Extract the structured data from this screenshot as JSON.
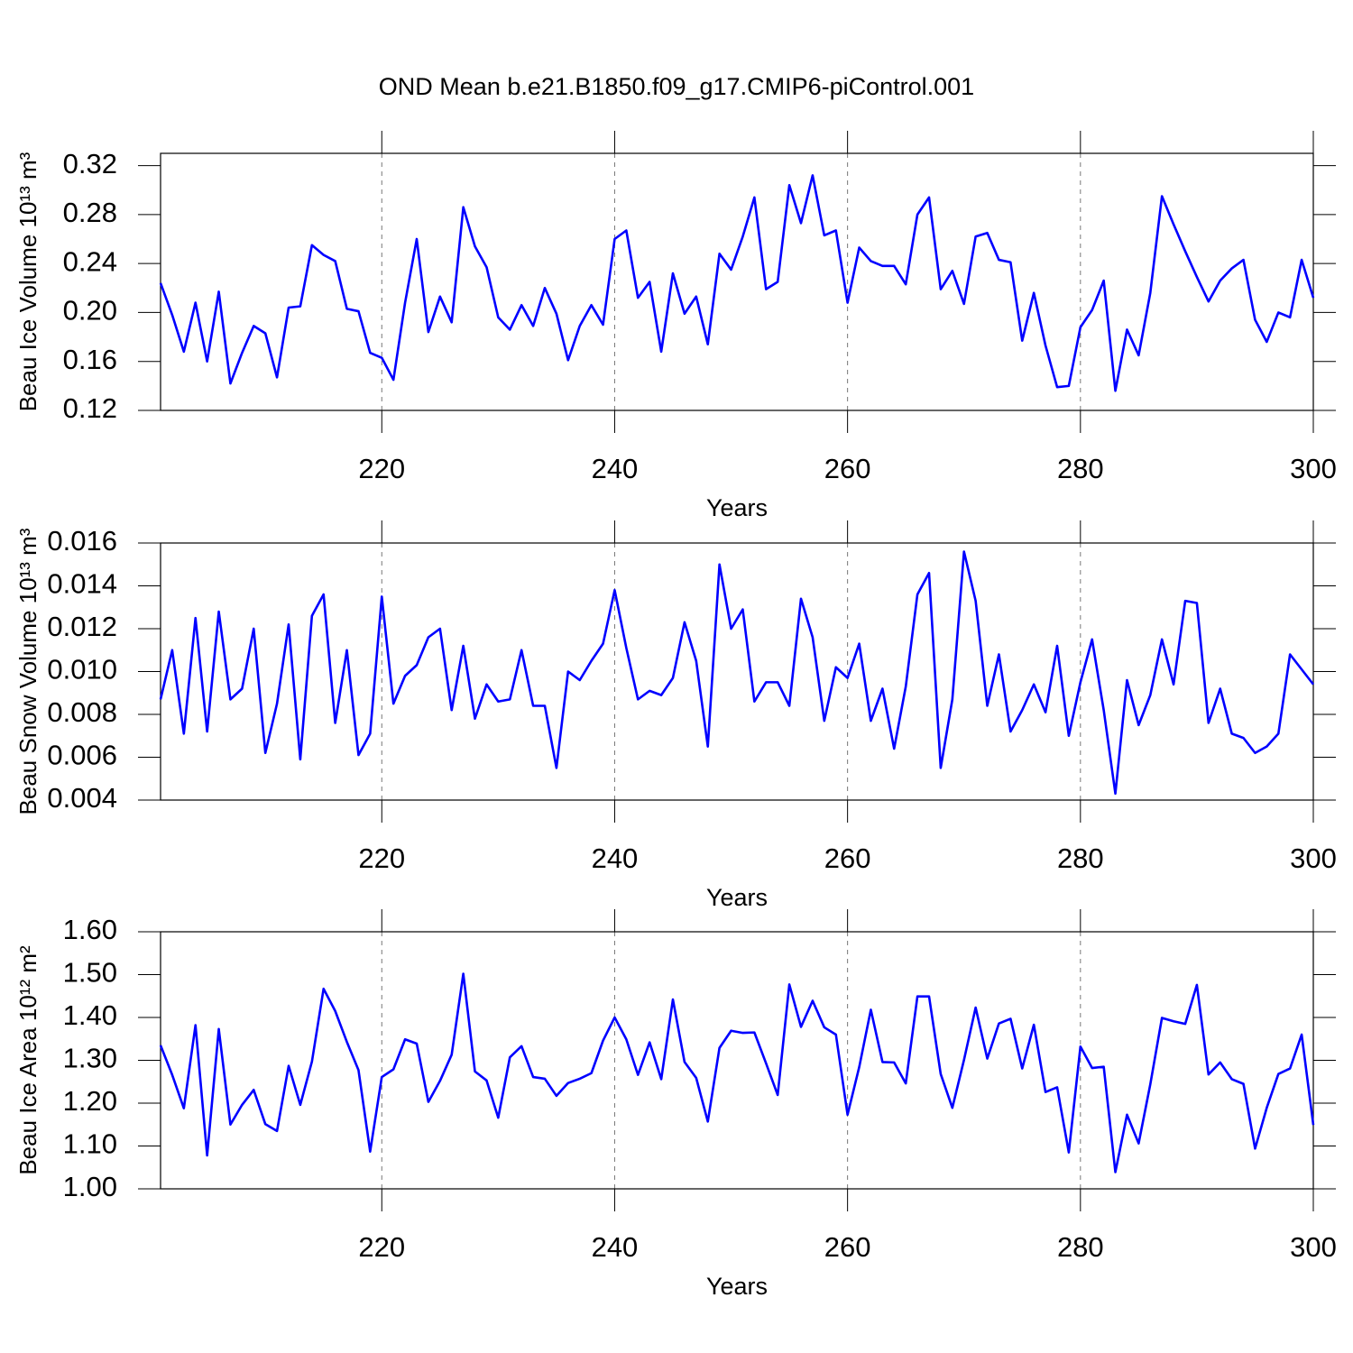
{
  "chart_data": [
    {
      "type": "line",
      "title": "OND Mean b.e21.B1850.f09_g17.CMIP6-piControl.001",
      "xlabel": "Years",
      "ylabel": "Beau Ice Volume 10¹³ m³",
      "x": [
        201,
        202,
        203,
        204,
        205,
        206,
        207,
        208,
        209,
        210,
        211,
        212,
        213,
        214,
        215,
        216,
        217,
        218,
        219,
        220,
        221,
        222,
        223,
        224,
        225,
        226,
        227,
        228,
        229,
        230,
        231,
        232,
        233,
        234,
        235,
        236,
        237,
        238,
        239,
        240,
        241,
        242,
        243,
        244,
        245,
        246,
        247,
        248,
        249,
        250,
        251,
        252,
        253,
        254,
        255,
        256,
        257,
        258,
        259,
        260,
        261,
        262,
        263,
        264,
        265,
        266,
        267,
        268,
        269,
        270,
        271,
        272,
        273,
        274,
        275,
        276,
        277,
        278,
        279,
        280,
        281,
        282,
        283,
        284,
        285,
        286,
        287,
        288,
        289,
        290,
        291,
        292,
        293,
        294,
        295,
        296,
        297,
        298,
        299,
        300
      ],
      "series": [
        {
          "color": "#0000ff",
          "values": [
            0.224,
            0.198,
            0.168,
            0.208,
            0.16,
            0.217,
            0.142,
            0.167,
            0.189,
            0.183,
            0.147,
            0.204,
            0.205,
            0.255,
            0.247,
            0.242,
            0.203,
            0.201,
            0.167,
            0.163,
            0.145,
            0.208,
            0.26,
            0.184,
            0.213,
            0.192,
            0.286,
            0.254,
            0.237,
            0.196,
            0.186,
            0.206,
            0.189,
            0.22,
            0.199,
            0.161,
            0.189,
            0.206,
            0.19,
            0.26,
            0.267,
            0.212,
            0.225,
            0.168,
            0.232,
            0.199,
            0.213,
            0.174,
            0.248,
            0.235,
            0.262,
            0.294,
            0.219,
            0.225,
            0.304,
            0.273,
            0.312,
            0.263,
            0.267,
            0.208,
            0.253,
            0.242,
            0.238,
            0.238,
            0.223,
            0.28,
            0.294,
            0.219,
            0.234,
            0.207,
            0.262,
            0.265,
            0.243,
            0.241,
            0.177,
            0.216,
            0.173,
            0.139,
            0.14,
            0.188,
            0.202,
            0.226,
            0.136,
            0.186,
            0.165,
            0.216,
            0.295,
            0.272,
            0.25,
            0.229,
            0.209,
            0.226,
            0.236,
            0.243,
            0.194,
            0.176,
            0.2,
            0.196,
            0.243,
            0.212
          ]
        }
      ],
      "xlim": [
        201,
        300
      ],
      "xticks": [
        220,
        240,
        260,
        280,
        300
      ],
      "xgrid": true,
      "ylim": [
        0.12,
        0.33
      ],
      "yticks": [
        0.12,
        0.16,
        {
          "value": 0.2,
          "label": "0.20"
        },
        0.24,
        0.28,
        0.32
      ]
    },
    {
      "type": "line",
      "xlabel": "Years",
      "ylabel": "Beau Snow Volume 10¹³ m³",
      "x": [
        201,
        202,
        203,
        204,
        205,
        206,
        207,
        208,
        209,
        210,
        211,
        212,
        213,
        214,
        215,
        216,
        217,
        218,
        219,
        220,
        221,
        222,
        223,
        224,
        225,
        226,
        227,
        228,
        229,
        230,
        231,
        232,
        233,
        234,
        235,
        236,
        237,
        238,
        239,
        240,
        241,
        242,
        243,
        244,
        245,
        246,
        247,
        248,
        249,
        250,
        251,
        252,
        253,
        254,
        255,
        256,
        257,
        258,
        259,
        260,
        261,
        262,
        263,
        264,
        265,
        266,
        267,
        268,
        269,
        270,
        271,
        272,
        273,
        274,
        275,
        276,
        277,
        278,
        279,
        280,
        281,
        282,
        283,
        284,
        285,
        286,
        287,
        288,
        289,
        290,
        291,
        292,
        293,
        294,
        295,
        296,
        297,
        298,
        299,
        300
      ],
      "series": [
        {
          "color": "#0000ff",
          "values": [
            0.0087,
            0.011,
            0.0071,
            0.0125,
            0.0072,
            0.0128,
            0.0087,
            0.0092,
            0.012,
            0.0062,
            0.0085,
            0.0122,
            0.0059,
            0.0126,
            0.0136,
            0.0076,
            0.011,
            0.0061,
            0.0071,
            0.0135,
            0.0085,
            0.0098,
            0.0103,
            0.0116,
            0.012,
            0.0082,
            0.0112,
            0.0078,
            0.0094,
            0.0086,
            0.0087,
            0.011,
            0.0084,
            0.0084,
            0.0055,
            0.01,
            0.0096,
            0.0105,
            0.0113,
            0.0138,
            0.0111,
            0.0087,
            0.0091,
            0.0089,
            0.0097,
            0.0123,
            0.0105,
            0.0065,
            0.015,
            0.012,
            0.0129,
            0.0086,
            0.0095,
            0.0095,
            0.0084,
            0.0134,
            0.0116,
            0.0077,
            0.0102,
            0.0097,
            0.0113,
            0.0077,
            0.0092,
            0.0064,
            0.0093,
            0.0136,
            0.0146,
            0.0055,
            0.0087,
            0.0156,
            0.0133,
            0.0084,
            0.0108,
            0.0072,
            0.0082,
            0.0094,
            0.0081,
            0.0112,
            0.007,
            0.0095,
            0.0115,
            0.0082,
            0.0043,
            0.0096,
            0.0075,
            0.0089,
            0.0115,
            0.0094,
            0.0133,
            0.0132,
            0.0076,
            0.0092,
            0.0071,
            0.0069,
            0.0062,
            0.0065,
            0.0071,
            0.0108,
            0.0101,
            0.0094
          ]
        }
      ],
      "xlim": [
        201,
        300
      ],
      "xticks": [
        220,
        240,
        260,
        280,
        300
      ],
      "xgrid": true,
      "ylim": [
        0.004,
        0.016
      ],
      "yticks": [
        0.004,
        0.006,
        0.008,
        {
          "value": 0.01,
          "label": "0.010"
        },
        0.012,
        0.014,
        0.016
      ]
    },
    {
      "type": "line",
      "xlabel": "Years",
      "ylabel": "Beau Ice Area 10¹² m²",
      "x": [
        201,
        202,
        203,
        204,
        205,
        206,
        207,
        208,
        209,
        210,
        211,
        212,
        213,
        214,
        215,
        216,
        217,
        218,
        219,
        220,
        221,
        222,
        223,
        224,
        225,
        226,
        227,
        228,
        229,
        230,
        231,
        232,
        233,
        234,
        235,
        236,
        237,
        238,
        239,
        240,
        241,
        242,
        243,
        244,
        245,
        246,
        247,
        248,
        249,
        250,
        251,
        252,
        253,
        254,
        255,
        256,
        257,
        258,
        259,
        260,
        261,
        262,
        263,
        264,
        265,
        266,
        267,
        268,
        269,
        270,
        271,
        272,
        273,
        274,
        275,
        276,
        277,
        278,
        279,
        280,
        281,
        282,
        283,
        284,
        285,
        286,
        287,
        288,
        289,
        290,
        291,
        292,
        293,
        294,
        295,
        296,
        297,
        298,
        299,
        300
      ],
      "series": [
        {
          "color": "#0000ff",
          "values": [
            1.335,
            1.266,
            1.188,
            1.382,
            1.078,
            1.373,
            1.15,
            1.196,
            1.231,
            1.151,
            1.135,
            1.287,
            1.196,
            1.297,
            1.467,
            1.415,
            1.343,
            1.277,
            1.087,
            1.261,
            1.279,
            1.349,
            1.339,
            1.203,
            1.252,
            1.313,
            1.502,
            1.274,
            1.253,
            1.166,
            1.307,
            1.333,
            1.261,
            1.257,
            1.217,
            1.247,
            1.257,
            1.27,
            1.346,
            1.4,
            1.349,
            1.266,
            1.342,
            1.256,
            1.442,
            1.296,
            1.259,
            1.157,
            1.329,
            1.369,
            1.364,
            1.365,
            1.293,
            1.219,
            1.477,
            1.378,
            1.439,
            1.377,
            1.36,
            1.173,
            1.284,
            1.418,
            1.296,
            1.295,
            1.246,
            1.449,
            1.449,
            1.268,
            1.189,
            1.301,
            1.423,
            1.304,
            1.386,
            1.397,
            1.281,
            1.383,
            1.226,
            1.237,
            1.085,
            1.332,
            1.282,
            1.285,
            1.039,
            1.173,
            1.106,
            1.244,
            1.399,
            1.391,
            1.385,
            1.476,
            1.267,
            1.295,
            1.256,
            1.245,
            1.094,
            1.189,
            1.268,
            1.281,
            1.36,
            1.149
          ]
        }
      ],
      "xlim": [
        201,
        300
      ],
      "xticks": [
        220,
        240,
        260,
        280,
        300
      ],
      "xgrid": true,
      "ylim": [
        1.0,
        1.6
      ],
      "yticks": [
        {
          "value": 1.0,
          "label": "1.00"
        },
        {
          "value": 1.1,
          "label": "1.10"
        },
        {
          "value": 1.2,
          "label": "1.20"
        },
        {
          "value": 1.3,
          "label": "1.30"
        },
        {
          "value": 1.4,
          "label": "1.40"
        },
        {
          "value": 1.5,
          "label": "1.50"
        },
        {
          "value": 1.6,
          "label": "1.60"
        }
      ]
    }
  ]
}
